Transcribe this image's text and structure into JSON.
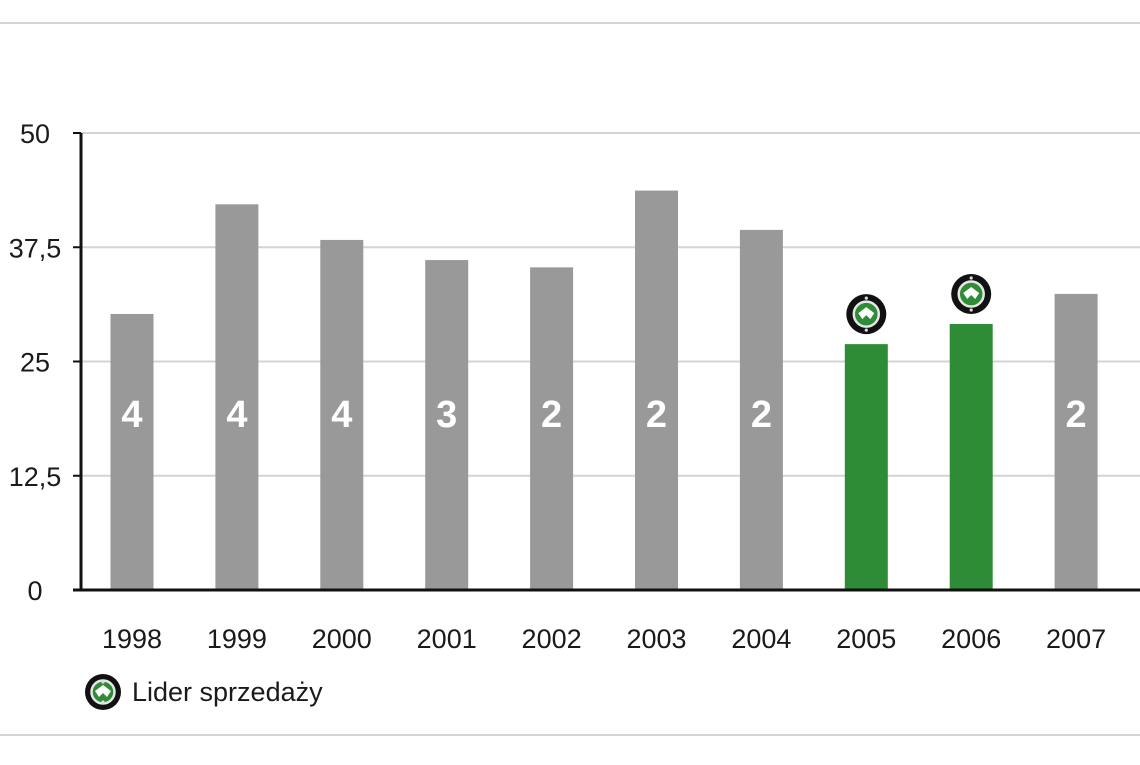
{
  "chart_data": {
    "type": "bar",
    "categories": [
      "1998",
      "1999",
      "2000",
      "2001",
      "2002",
      "2003",
      "2004",
      "2005",
      "2006",
      "2007"
    ],
    "values": [
      30.2,
      42.2,
      38.3,
      36.1,
      35.3,
      43.7,
      39.4,
      26.9,
      29.1,
      32.4
    ],
    "bar_labels": [
      "4",
      "4",
      "4",
      "3",
      "2",
      "2",
      "2",
      "",
      "",
      "2"
    ],
    "leader_years": [
      "2005",
      "2006"
    ],
    "y_ticks": [
      "0",
      "12,5",
      "25",
      "37,5",
      "50"
    ],
    "ylim": [
      0,
      50
    ],
    "grid": true,
    "title": "",
    "xlabel": "",
    "ylabel": "",
    "colors": {
      "default_bar": "#999999",
      "leader_bar": "#2e8b36",
      "grid": "#d4d4d4",
      "axis": "#111111"
    }
  },
  "legend": {
    "icon": "skoda-logo-icon",
    "label": "Lider sprzedaży"
  }
}
